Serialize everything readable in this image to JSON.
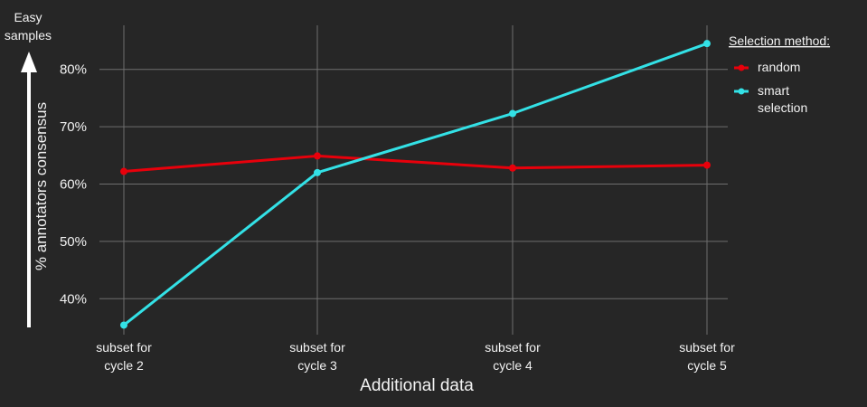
{
  "chart_data": {
    "type": "line",
    "xlabel": "Additional data",
    "ylabel": "% annotators consensus",
    "annotation": [
      "Easy",
      "samples"
    ],
    "categories": [
      [
        "subset for",
        "cycle 2"
      ],
      [
        "subset for",
        "cycle 3"
      ],
      [
        "subset for",
        "cycle 4"
      ],
      [
        "subset for",
        "cycle 5"
      ]
    ],
    "yticks": [
      {
        "value": 40,
        "label": "40%"
      },
      {
        "value": 50,
        "label": "50%"
      },
      {
        "value": 60,
        "label": "60%"
      },
      {
        "value": 70,
        "label": "70%"
      },
      {
        "value": 80,
        "label": "80%"
      }
    ],
    "ylim": [
      35,
      85
    ],
    "grid": true,
    "legend": {
      "title": "Selection method:",
      "placement": "right"
    },
    "series": [
      {
        "name": "random",
        "label_lines": [
          "random"
        ],
        "color": "#e8000b",
        "values": [
          62.2,
          64.9,
          62.8,
          63.3
        ]
      },
      {
        "name": "smart selection",
        "label_lines": [
          "smart",
          "selection"
        ],
        "color": "#33e1e6",
        "values": [
          35.4,
          62.0,
          72.3,
          84.5
        ]
      }
    ]
  }
}
